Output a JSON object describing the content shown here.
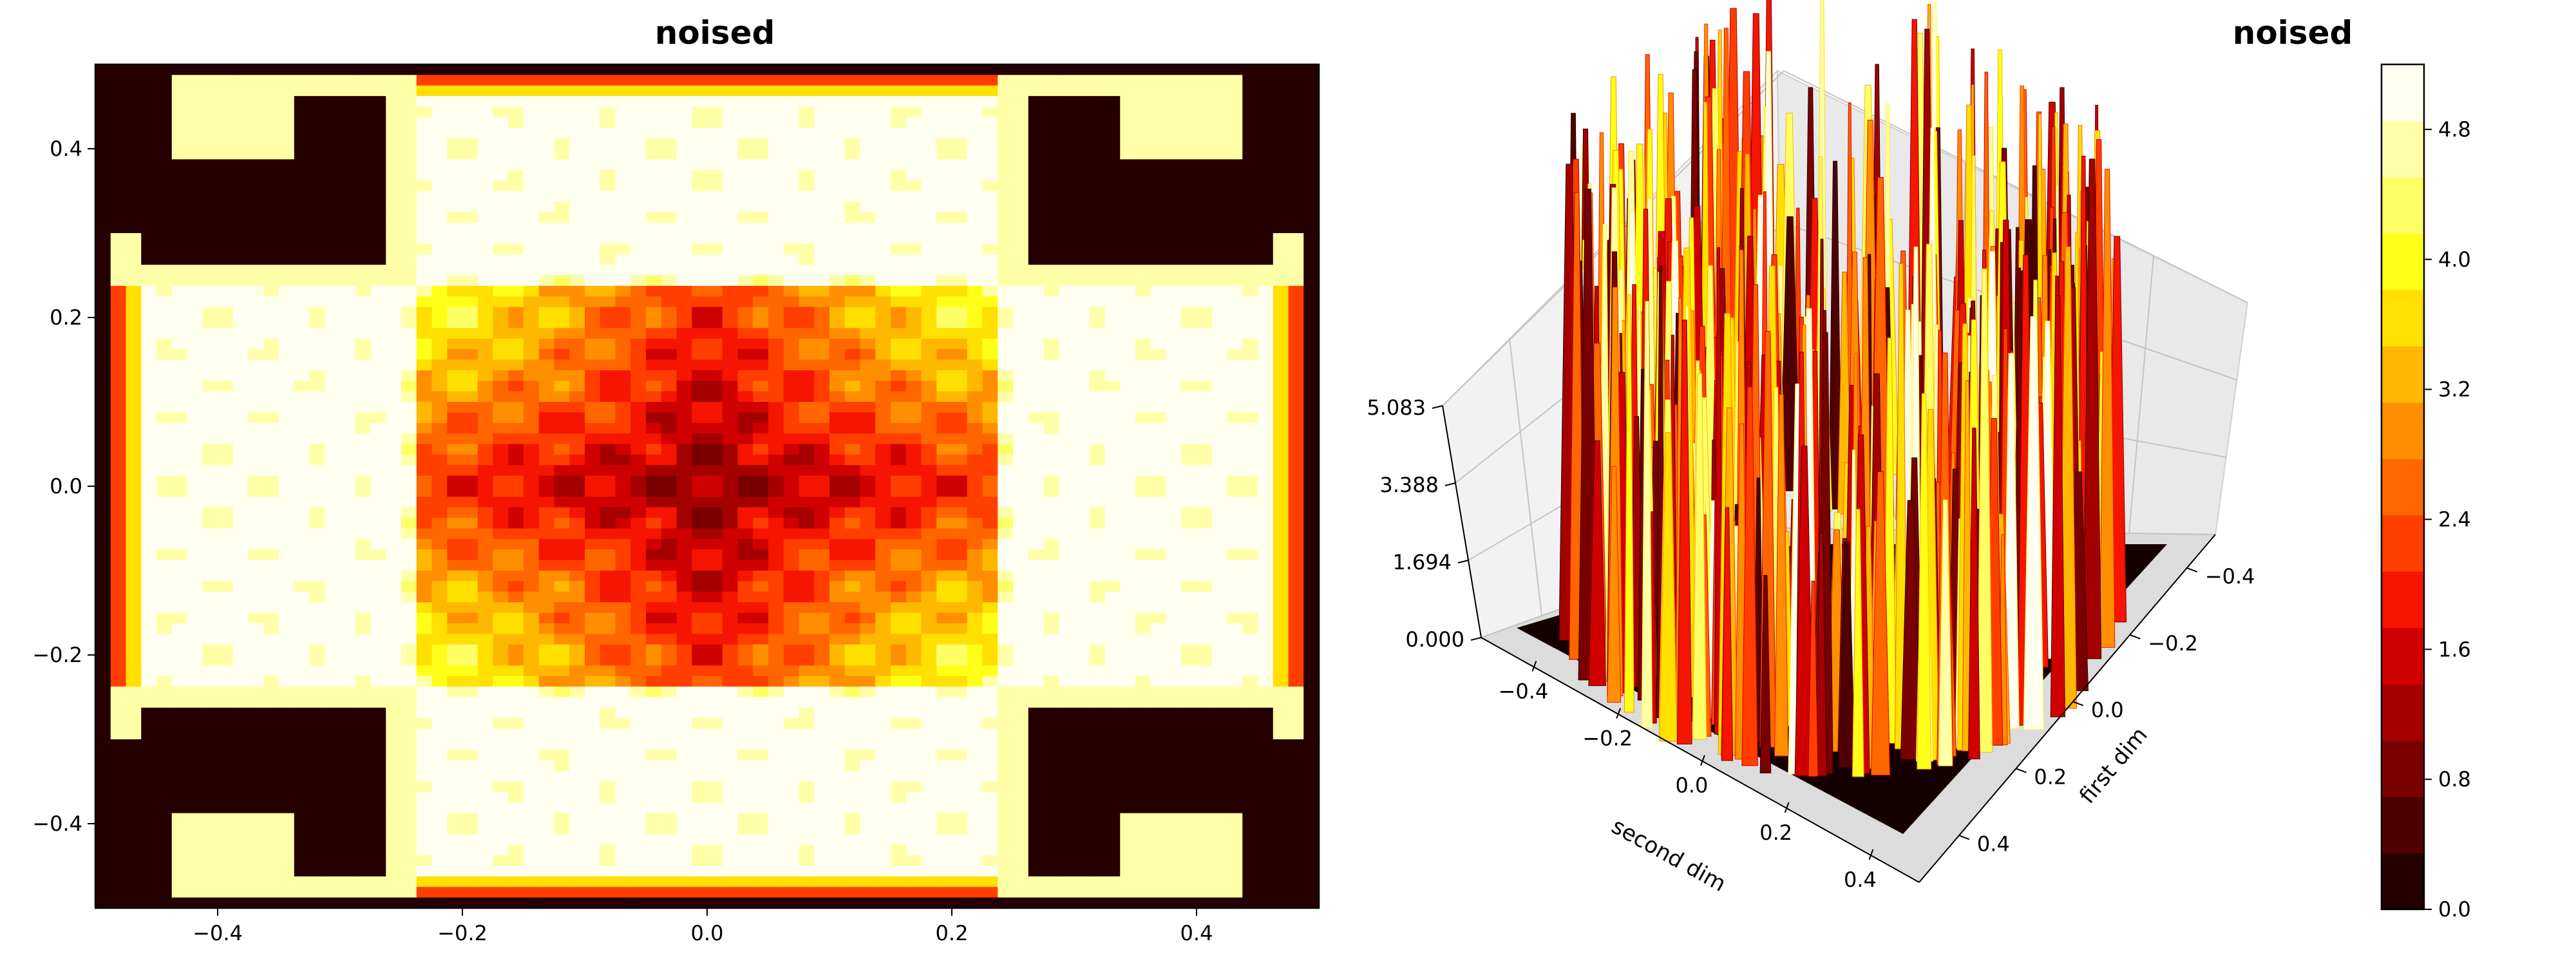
{
  "chart_data": [
    {
      "type": "heatmap",
      "subtype": "filled-contour",
      "title": "noised",
      "xlim": [
        -0.5,
        0.5
      ],
      "ylim": [
        -0.5,
        0.5
      ],
      "xticks": [
        "−0.4",
        "−0.2",
        "0.0",
        "0.2",
        "0.4"
      ],
      "yticks": [
        "0.4",
        "0.2",
        "0.0",
        "−0.2",
        "−0.4"
      ],
      "colormap": "hot",
      "description": "Square-lattice pattern; outer region and four corner pockets at zero (dark), a yellow/white band, and a red central cross with darkest values at the origin."
    },
    {
      "type": "surface3d",
      "title": "noised",
      "xlabel": "second dim",
      "ylabel": "first dim",
      "x_ticks": [
        "−0.4",
        "−0.2",
        "0.0",
        "0.2",
        "0.4"
      ],
      "y_ticks": [
        "−0.4",
        "−0.2",
        "0.0",
        "0.2",
        "0.4"
      ],
      "z_ticks": [
        "0.000",
        "1.694",
        "3.388",
        "5.083"
      ],
      "zlim": [
        0.0,
        5.083
      ],
      "colormap": "hot"
    }
  ],
  "colorbar": {
    "ticks": [
      "0.0",
      "0.8",
      "1.6",
      "2.4",
      "3.2",
      "4.0",
      "4.8"
    ],
    "range": [
      0.0,
      5.2
    ],
    "levels": [
      "#240000",
      "#500000",
      "#7a0000",
      "#a50000",
      "#d00000",
      "#f51500",
      "#ff3e00",
      "#ff6600",
      "#ff8f00",
      "#ffb800",
      "#ffe000",
      "#ffff18",
      "#ffff66",
      "#ffffa8",
      "#fffff0"
    ]
  }
}
